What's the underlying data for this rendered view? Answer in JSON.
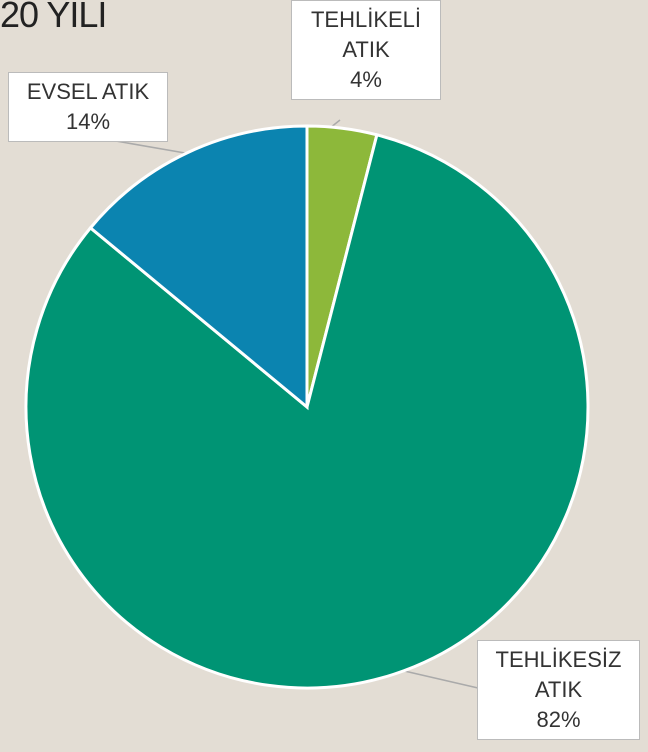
{
  "chart_data": {
    "type": "pie",
    "title": "20 YILI",
    "categories": [
      "TEHLİKELİ ATIK",
      "TEHLİKESİZ ATIK",
      "EVSEL ATIK"
    ],
    "values": [
      4,
      82,
      14
    ],
    "value_labels": [
      "4%",
      "82%",
      "14%"
    ],
    "colors": [
      "#8db83a",
      "#009474",
      "#0b84b0"
    ]
  }
}
